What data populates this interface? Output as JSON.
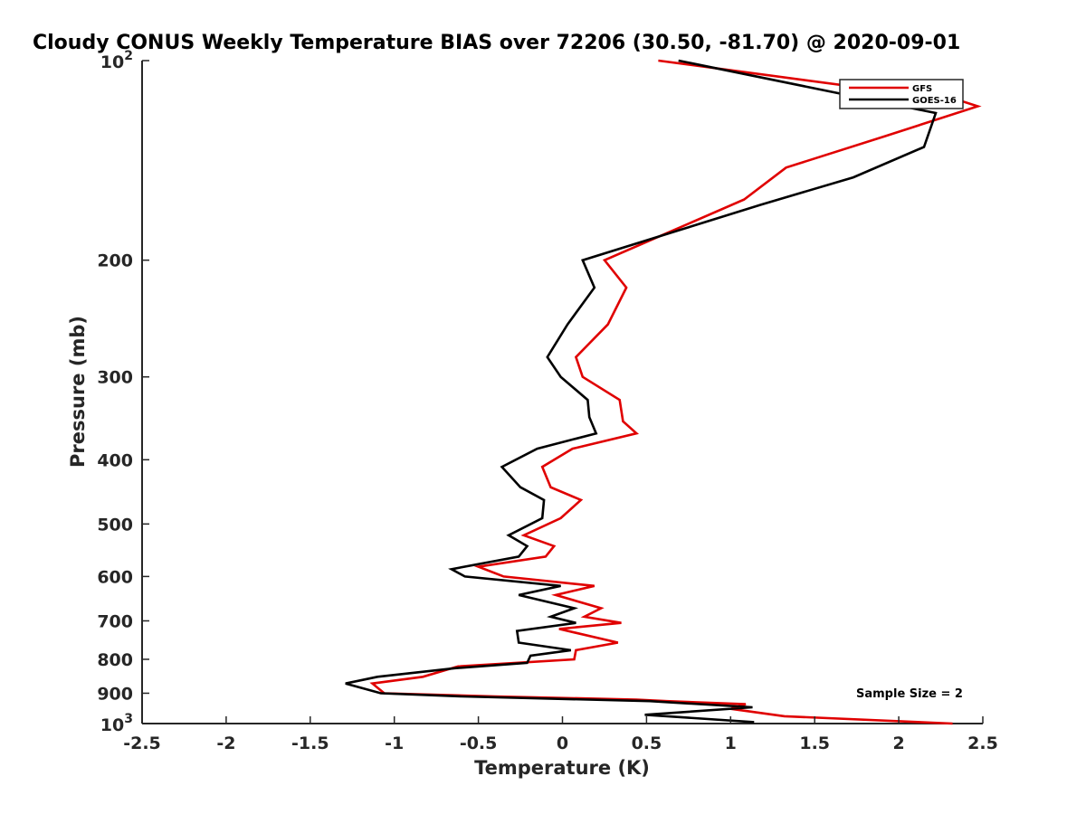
{
  "chart_data": {
    "type": "line",
    "title": "Cloudy CONUS Weekly Temperature BIAS over 72206 (30.50, -81.70) @ 2020-09-01",
    "xlabel": "Temperature (K)",
    "ylabel": "Pressure (mb)",
    "xlim": [
      -2.5,
      2.5
    ],
    "ylim": [
      1000,
      100
    ],
    "y_scale": "log",
    "y_direction": "reverse",
    "grid": false,
    "x_ticks": [
      -2.5,
      -2,
      -1.5,
      -1,
      -0.5,
      0,
      0.5,
      1,
      1.5,
      2,
      2.5
    ],
    "x_tick_labels": [
      "-2.5",
      "-2",
      "-1.5",
      "-1",
      "-0.5",
      "0",
      "0.5",
      "1",
      "1.5",
      "2",
      "2.5"
    ],
    "y_ticks": [
      200,
      300,
      400,
      500,
      600,
      700,
      800,
      900
    ],
    "y_tick_labels": [
      "200",
      "300",
      "400",
      "500",
      "600",
      "700",
      "800",
      "900"
    ],
    "y_end_labels": [
      {
        "value": 100,
        "base": "10",
        "exp": "2"
      },
      {
        "value": 1000,
        "base": "10",
        "exp": "3"
      }
    ],
    "legend": {
      "position": "top-right"
    },
    "annotation": "Sample Size = 2",
    "series": [
      {
        "name": "GFS",
        "color": "#e00000",
        "points": [
          [
            0.57,
            100
          ],
          [
            2.37,
            115
          ],
          [
            2.47,
            117.2
          ],
          [
            1.92,
            130
          ],
          [
            1.33,
            145
          ],
          [
            1.08,
            162
          ],
          [
            0.25,
            200
          ],
          [
            0.38,
            220
          ],
          [
            0.27,
            250
          ],
          [
            0.08,
            280
          ],
          [
            0.12,
            300
          ],
          [
            0.34,
            325
          ],
          [
            0.36,
            350
          ],
          [
            0.44,
            365
          ],
          [
            0.06,
            385
          ],
          [
            -0.12,
            410
          ],
          [
            -0.07,
            440
          ],
          [
            0.11,
            460
          ],
          [
            -0.01,
            490
          ],
          [
            -0.23,
            520
          ],
          [
            -0.05,
            540
          ],
          [
            -0.1,
            560
          ],
          [
            -0.5,
            580
          ],
          [
            -0.35,
            600
          ],
          [
            0.19,
            620
          ],
          [
            -0.04,
            640
          ],
          [
            0.23,
            670
          ],
          [
            0.13,
            690
          ],
          [
            0.35,
            705
          ],
          [
            -0.02,
            720
          ],
          [
            0.33,
            755
          ],
          [
            0.08,
            775
          ],
          [
            0.07,
            800
          ],
          [
            -0.62,
            820
          ],
          [
            -0.83,
            850
          ],
          [
            -1.13,
            870
          ],
          [
            -1.06,
            900
          ],
          [
            -0.4,
            910
          ],
          [
            0.44,
            920
          ],
          [
            0.62,
            925
          ],
          [
            1.09,
            935
          ],
          [
            1.0,
            950
          ],
          [
            1.32,
            975
          ],
          [
            2.32,
            1000
          ]
        ]
      },
      {
        "name": "GOES-16",
        "color": "#000000",
        "points": [
          [
            0.69,
            100
          ],
          [
            2.22,
            120
          ],
          [
            2.15,
            135
          ],
          [
            1.73,
            150
          ],
          [
            1.18,
            165
          ],
          [
            0.12,
            200
          ],
          [
            0.19,
            220
          ],
          [
            0.03,
            250
          ],
          [
            -0.09,
            280
          ],
          [
            -0.01,
            300
          ],
          [
            0.15,
            325
          ],
          [
            0.16,
            345
          ],
          [
            0.2,
            365
          ],
          [
            -0.15,
            385
          ],
          [
            -0.36,
            410
          ],
          [
            -0.25,
            440
          ],
          [
            -0.11,
            460
          ],
          [
            -0.12,
            490
          ],
          [
            -0.32,
            520
          ],
          [
            -0.21,
            540
          ],
          [
            -0.26,
            560
          ],
          [
            -0.66,
            585
          ],
          [
            -0.58,
            600
          ],
          [
            -0.01,
            620
          ],
          [
            -0.26,
            640
          ],
          [
            0.07,
            670
          ],
          [
            -0.07,
            690
          ],
          [
            0.08,
            705
          ],
          [
            -0.27,
            725
          ],
          [
            -0.26,
            755
          ],
          [
            0.05,
            775
          ],
          [
            -0.19,
            790
          ],
          [
            -0.21,
            810
          ],
          [
            -0.64,
            825
          ],
          [
            -1.1,
            850
          ],
          [
            -1.29,
            870
          ],
          [
            -1.08,
            900
          ],
          [
            -0.6,
            910
          ],
          [
            0.52,
            925
          ],
          [
            1.13,
            945
          ],
          [
            0.49,
            970
          ],
          [
            1.14,
            995
          ]
        ]
      }
    ]
  }
}
